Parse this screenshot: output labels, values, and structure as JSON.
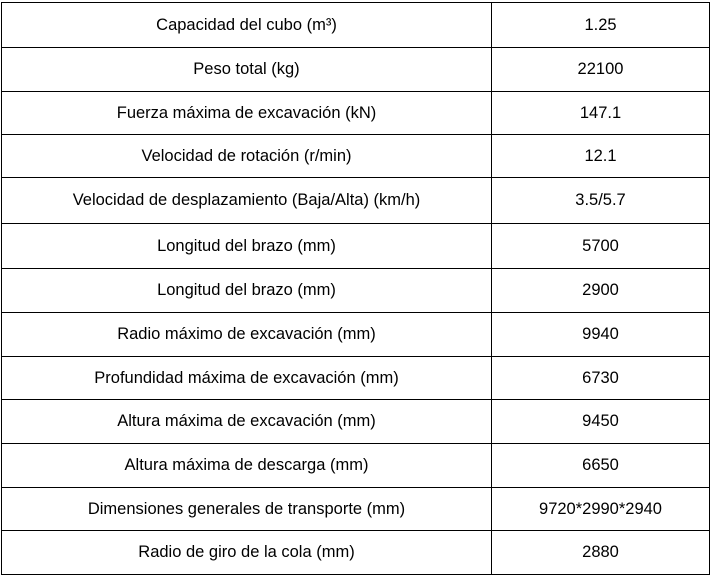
{
  "table": {
    "rows": [
      [
        "Capacidad del cubo (m³)",
        "1.25"
      ],
      [
        "Peso total (kg)",
        "22100"
      ],
      [
        "Fuerza máxima de excavación (kN)",
        "147.1"
      ],
      [
        "Velocidad de rotación (r/min)",
        "12.1"
      ],
      [
        "Velocidad de desplazamiento (Baja/Alta) (km/h)",
        "3.5/5.7"
      ],
      [
        "Longitud del brazo (mm)",
        "5700"
      ],
      [
        "Longitud del brazo (mm)",
        "2900"
      ],
      [
        "Radio máximo de excavación (mm)",
        "9940"
      ],
      [
        "Profundidad máxima de excavación (mm)",
        "6730"
      ],
      [
        "Altura máxima de excavación (mm)",
        "9450"
      ],
      [
        "Altura máxima de descarga (mm)",
        "6650"
      ],
      [
        "Dimensiones generales de transporte (mm)",
        "9720*2990*2940"
      ],
      [
        "Radio de giro de la cola (mm)",
        "2880"
      ]
    ]
  }
}
